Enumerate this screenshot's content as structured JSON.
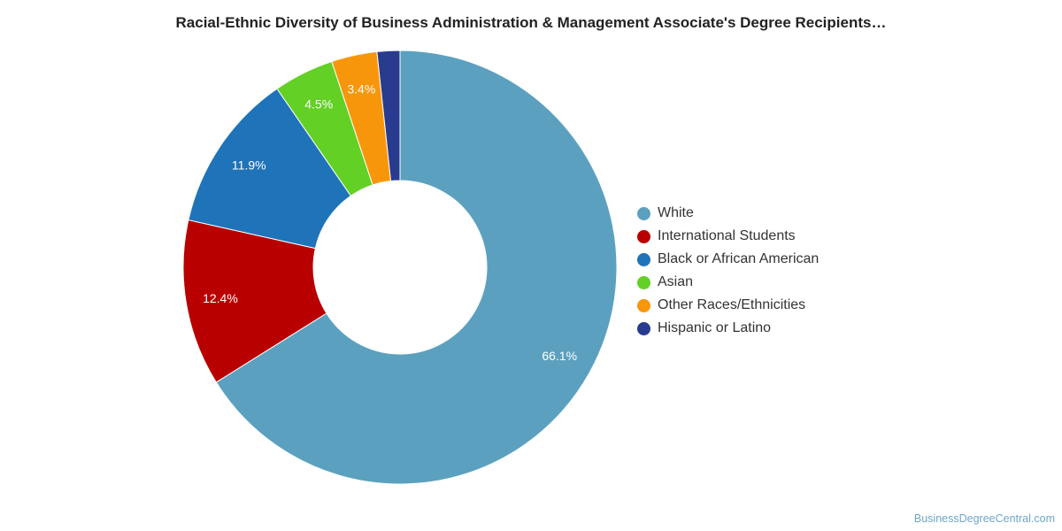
{
  "title": "Racial-Ethnic Diversity of Business Administration & Management Associate's Degree Recipients…",
  "watermark": "BusinessDegreeCentral.com",
  "chart_data": {
    "type": "pie",
    "donut": true,
    "title": "Racial-Ethnic Diversity of Business Administration & Management Associate's Degree Recipients…",
    "legend_position": "right",
    "slices": [
      {
        "name": "White",
        "value": 66.1,
        "label": "66.1%",
        "color": "#5ba1bf"
      },
      {
        "name": "International Students",
        "value": 12.4,
        "label": "12.4%",
        "color": "#b90000"
      },
      {
        "name": "Black or African American",
        "value": 11.9,
        "label": "11.9%",
        "color": "#1e73b9"
      },
      {
        "name": "Asian",
        "value": 4.5,
        "label": "4.5%",
        "color": "#62d025"
      },
      {
        "name": "Other Races/Ethnicities",
        "value": 3.4,
        "label": "3.4%",
        "color": "#f8960b"
      },
      {
        "name": "Hispanic or Latino",
        "value": 1.7,
        "label": "",
        "color": "#283b8f"
      }
    ]
  }
}
